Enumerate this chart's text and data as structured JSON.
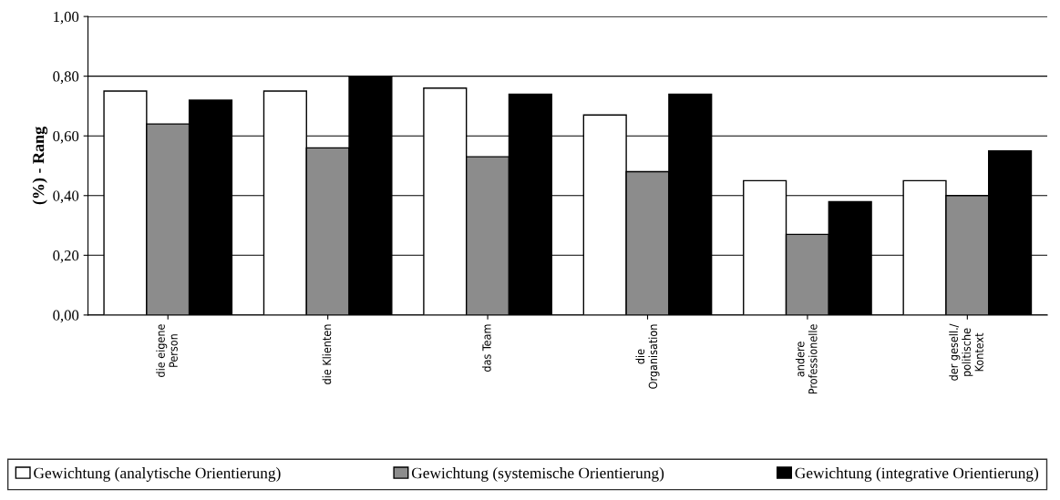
{
  "chart_data": {
    "type": "bar",
    "ylabel": "(%) - Rang",
    "categories": [
      "die eigene\nPerson",
      "die Klienten",
      "das Team",
      "die\nOrganisation",
      "andere\nProfessionelle",
      "der gesell./\npolitische\nKontext"
    ],
    "series": [
      {
        "name": "Gewichtung (analytische Orientierung)",
        "color": "#ffffff",
        "values": [
          0.75,
          0.75,
          0.76,
          0.67,
          0.45,
          0.45
        ]
      },
      {
        "name": "Gewichtung (systemische Orientierung)",
        "color": "#8c8c8c",
        "values": [
          0.64,
          0.56,
          0.53,
          0.48,
          0.27,
          0.4
        ]
      },
      {
        "name": "Gewichtung (integrative Orientierung)",
        "color": "#000000",
        "values": [
          0.72,
          0.8,
          0.74,
          0.74,
          0.38,
          0.55
        ]
      }
    ],
    "ylim": [
      0,
      1
    ],
    "yticks": [
      {
        "value": 0,
        "label": "0,00"
      },
      {
        "value": 0.2,
        "label": "0,20"
      },
      {
        "value": 0.4,
        "label": "0,40"
      },
      {
        "value": 0.6,
        "label": "0,60"
      },
      {
        "value": 0.8,
        "label": "0,80"
      },
      {
        "value": 1,
        "label": "1,00"
      }
    ],
    "grid": "y",
    "legend": "bottom"
  }
}
